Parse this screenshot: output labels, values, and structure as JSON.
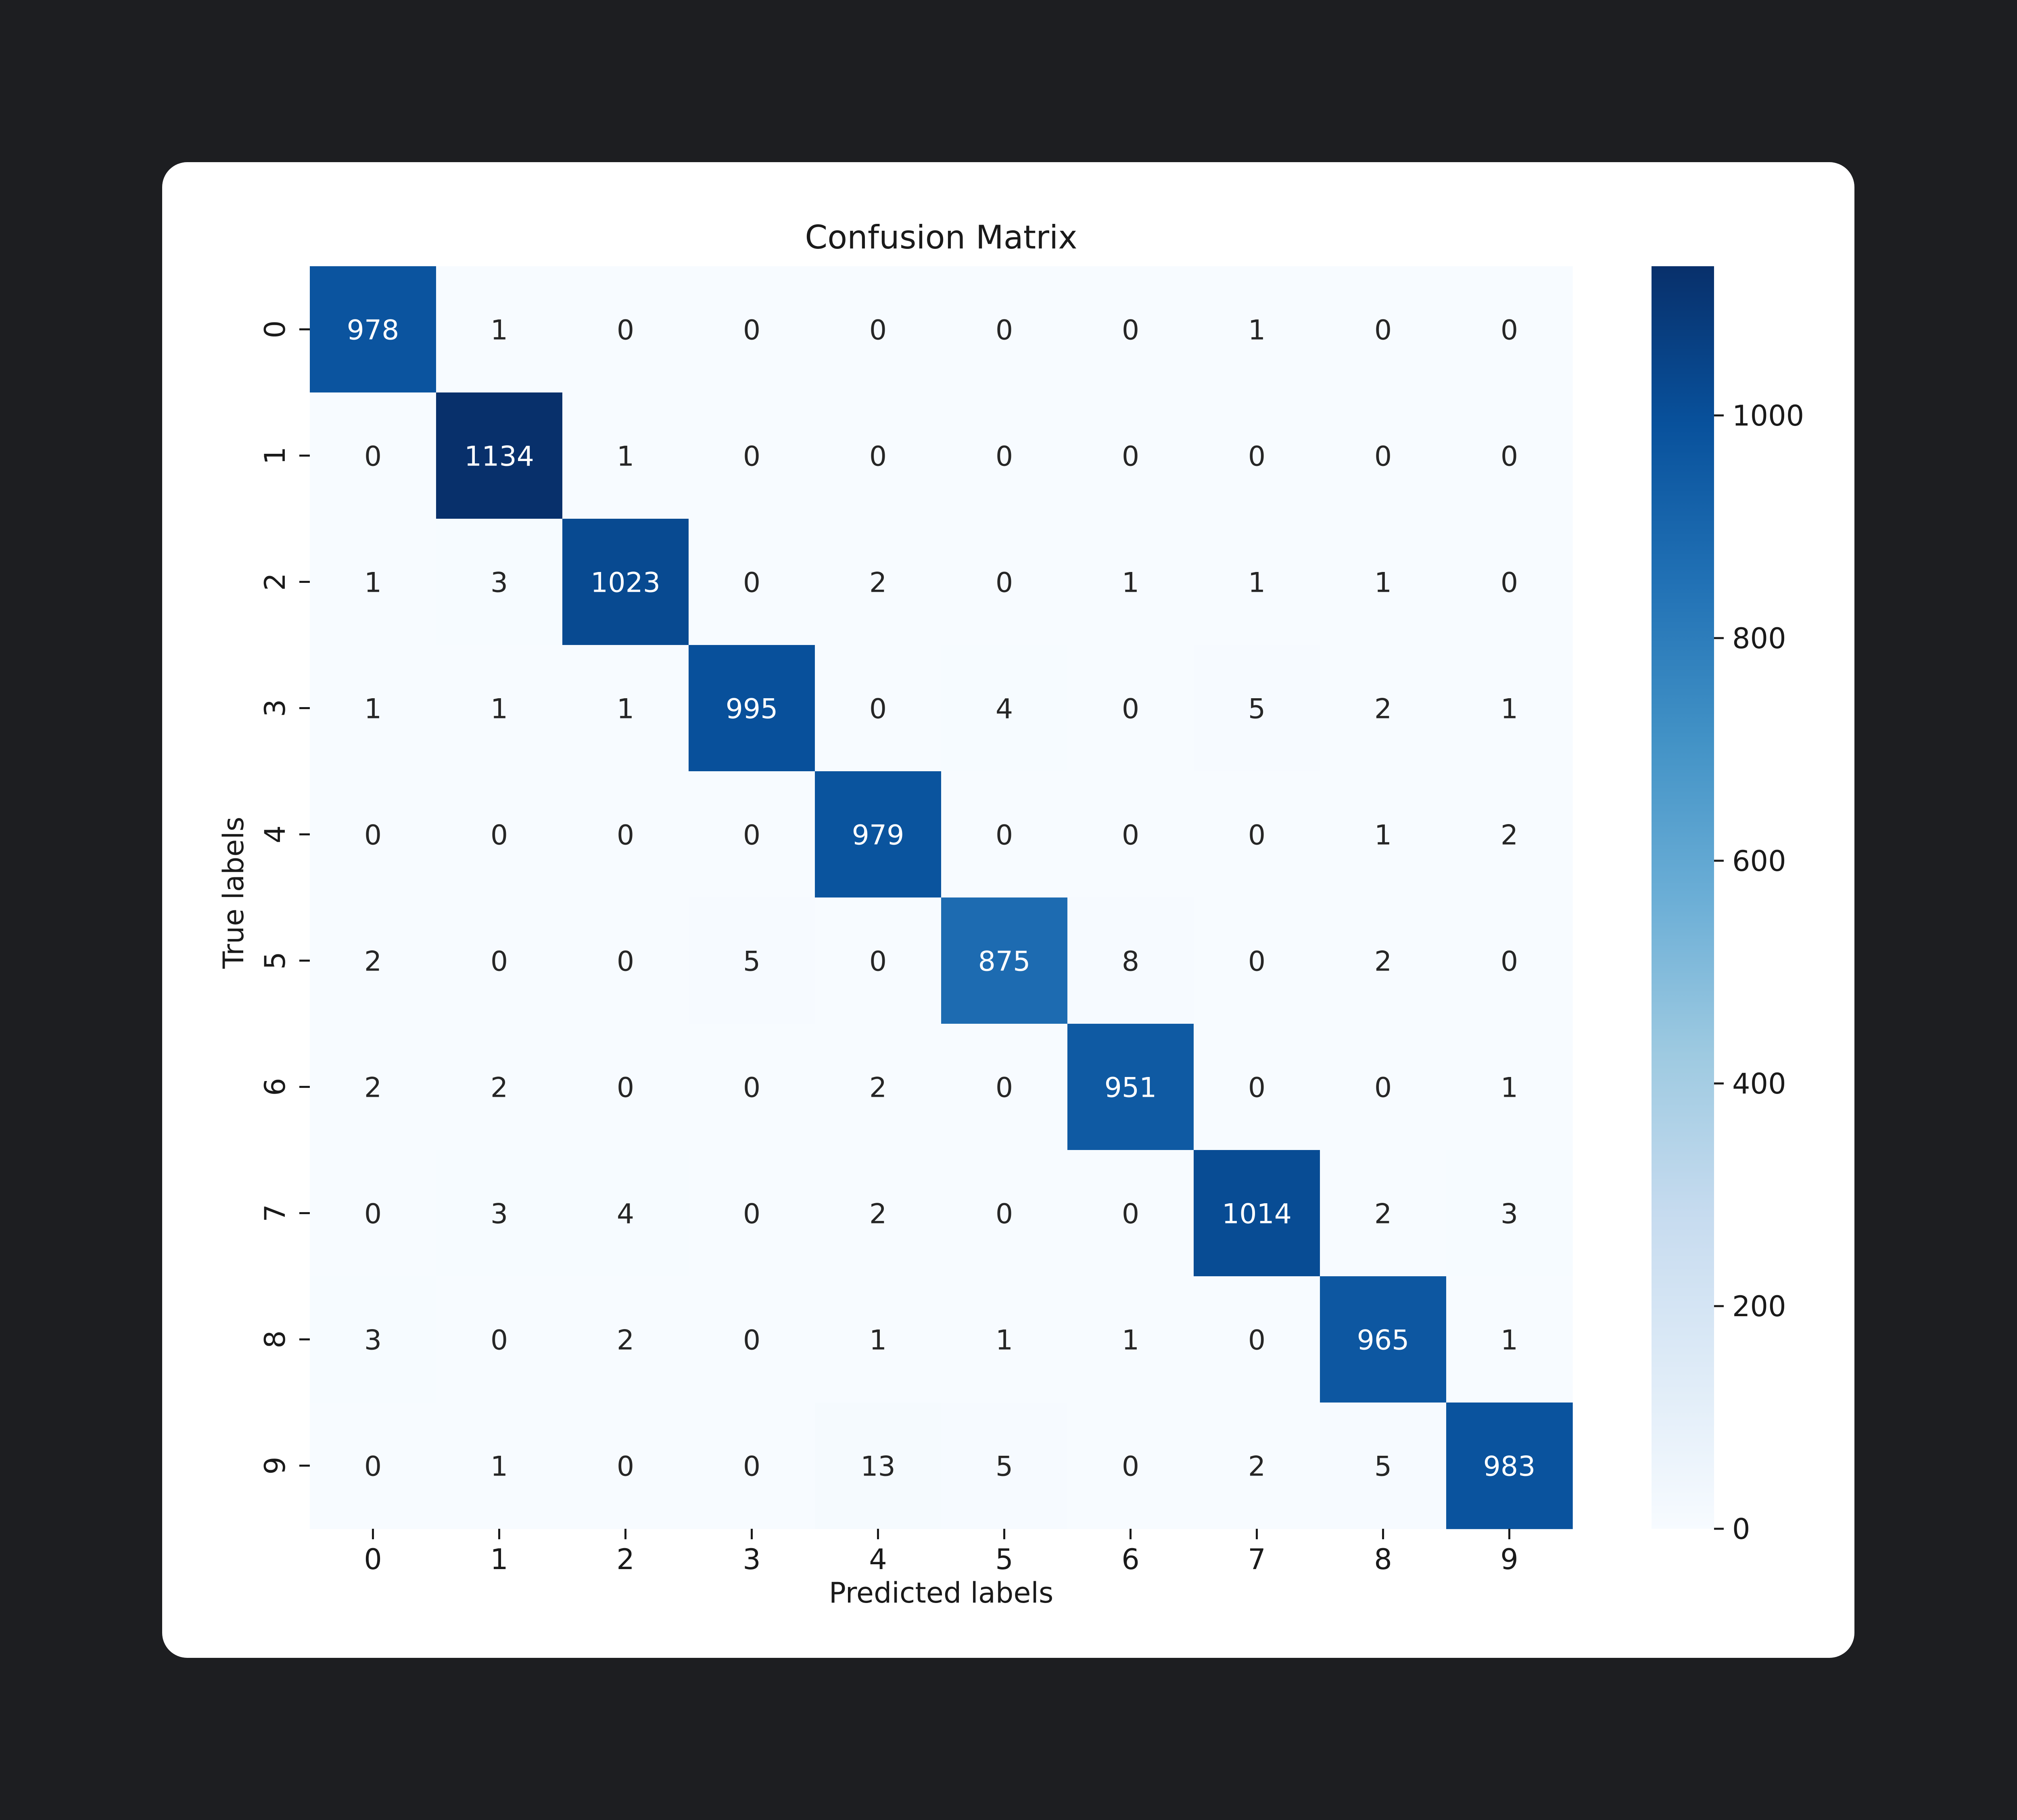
{
  "chart_data": {
    "type": "heatmap",
    "title": "Confusion Matrix",
    "xlabel": "Predicted labels",
    "ylabel": "True labels",
    "x_categories": [
      "0",
      "1",
      "2",
      "3",
      "4",
      "5",
      "6",
      "7",
      "8",
      "9"
    ],
    "y_categories": [
      "0",
      "1",
      "2",
      "3",
      "4",
      "5",
      "6",
      "7",
      "8",
      "9"
    ],
    "values": [
      [
        978,
        1,
        0,
        0,
        0,
        0,
        0,
        1,
        0,
        0
      ],
      [
        0,
        1134,
        1,
        0,
        0,
        0,
        0,
        0,
        0,
        0
      ],
      [
        1,
        3,
        1023,
        0,
        2,
        0,
        1,
        1,
        1,
        0
      ],
      [
        1,
        1,
        1,
        995,
        0,
        4,
        0,
        5,
        2,
        1
      ],
      [
        0,
        0,
        0,
        0,
        979,
        0,
        0,
        0,
        1,
        2
      ],
      [
        2,
        0,
        0,
        5,
        0,
        875,
        8,
        0,
        2,
        0
      ],
      [
        2,
        2,
        0,
        0,
        2,
        0,
        951,
        0,
        0,
        1
      ],
      [
        0,
        3,
        4,
        0,
        2,
        0,
        0,
        1014,
        2,
        3
      ],
      [
        3,
        0,
        2,
        0,
        1,
        1,
        1,
        0,
        965,
        1
      ],
      [
        0,
        1,
        0,
        0,
        13,
        5,
        0,
        2,
        5,
        983
      ]
    ],
    "colormap": "Blues",
    "colorbar": {
      "min": 0,
      "max": 1134,
      "ticks": [
        0,
        200,
        400,
        600,
        800,
        1000
      ]
    }
  },
  "colors": {
    "background": "#1d1e21",
    "card": "#ffffff",
    "text": "#1a1a1a",
    "cell_text_dark": "#262626",
    "cell_text_light": "#ffffff"
  }
}
